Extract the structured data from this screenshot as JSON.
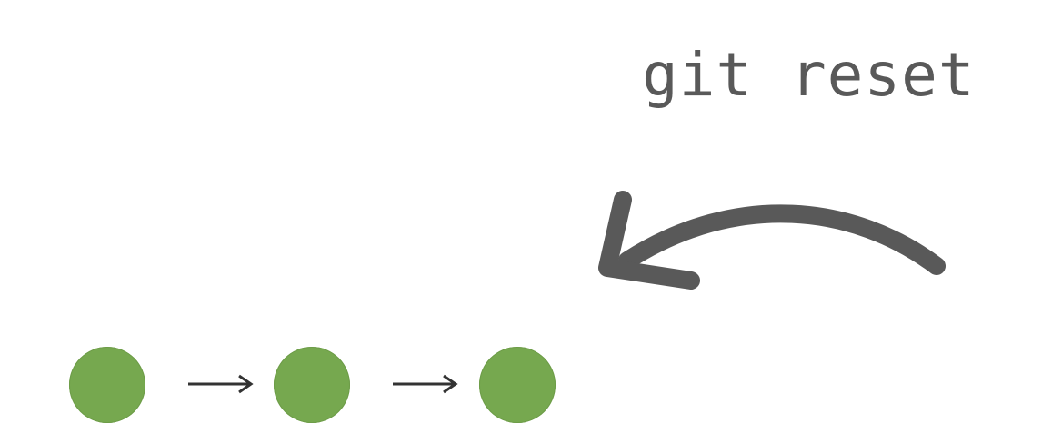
{
  "command": {
    "text": "git reset"
  },
  "colors": {
    "background": "#ffffff",
    "command_text": "#595959",
    "reset_arrow": "#595959",
    "commit_fill": "#76a84f",
    "link_arrow": "#333333"
  },
  "icons": {
    "reset_arrow": "curved-arrow-left-icon",
    "link_arrow": "arrow-right-icon"
  },
  "commits": [
    {
      "id": "commit-1"
    },
    {
      "id": "commit-2"
    },
    {
      "id": "commit-3"
    }
  ]
}
